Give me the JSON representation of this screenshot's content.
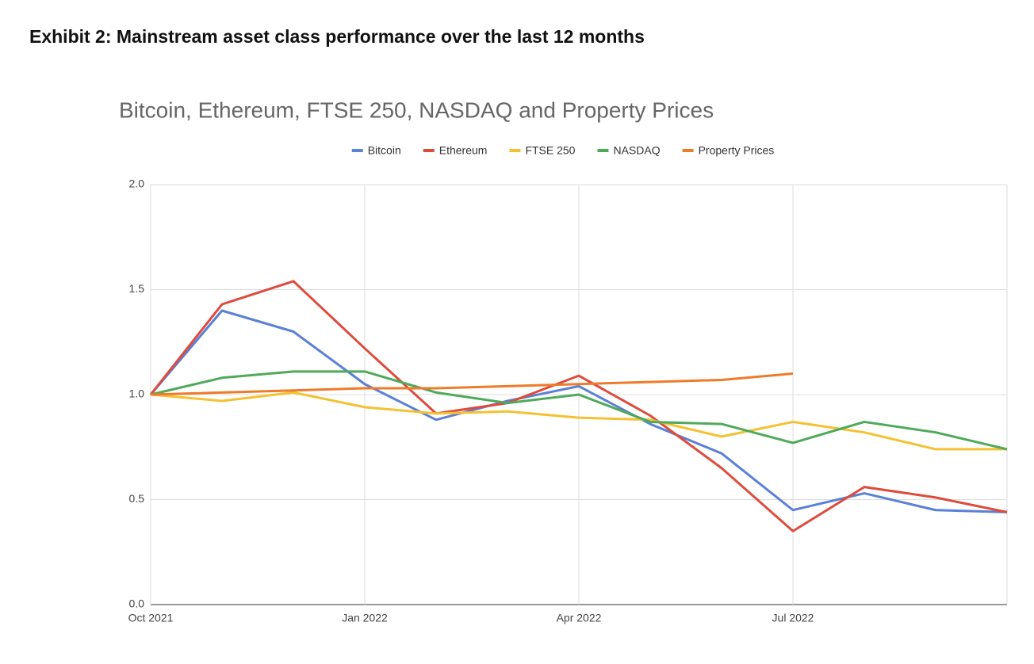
{
  "heading": "Exhibit 2: Mainstream asset class performance over the last 12 months",
  "chart_data": {
    "type": "line",
    "title": "Bitcoin, Ethereum, FTSE 250, NASDAQ and Property Prices",
    "categories": [
      "Oct 2021",
      null,
      null,
      "Jan 2022",
      null,
      null,
      "Apr 2022",
      null,
      null,
      "Jul 2022",
      null,
      null,
      null
    ],
    "series": [
      {
        "name": "Bitcoin",
        "color": "#5a80d8",
        "values": [
          1.0,
          1.4,
          1.3,
          1.05,
          0.88,
          0.97,
          1.04,
          0.86,
          0.72,
          0.45,
          0.53,
          0.45,
          0.44
        ]
      },
      {
        "name": "Ethereum",
        "color": "#de4b3c",
        "values": [
          1.0,
          1.43,
          1.54,
          1.22,
          0.91,
          0.96,
          1.09,
          0.9,
          0.65,
          0.35,
          0.56,
          0.51,
          0.44
        ]
      },
      {
        "name": "FTSE 250",
        "color": "#f4c132",
        "values": [
          1.0,
          0.97,
          1.01,
          0.94,
          0.91,
          0.92,
          0.89,
          0.88,
          0.8,
          0.87,
          0.82,
          0.74,
          0.74
        ]
      },
      {
        "name": "NASDAQ",
        "color": "#4eaa5a",
        "values": [
          1.0,
          1.08,
          1.11,
          1.11,
          1.01,
          0.96,
          1.0,
          0.87,
          0.86,
          0.77,
          0.87,
          0.82,
          0.74
        ]
      },
      {
        "name": "Property Prices",
        "color": "#ee7b2a",
        "values": [
          1.0,
          1.01,
          1.02,
          1.03,
          1.03,
          1.04,
          1.05,
          1.06,
          1.07,
          1.1,
          null,
          null,
          null
        ]
      }
    ],
    "ylim": [
      0,
      2
    ],
    "yticks": [
      {
        "value": 0,
        "label": "0.0"
      },
      0.5,
      {
        "value": 1,
        "label": "1.0"
      },
      1.5,
      {
        "value": 2,
        "label": "2.0"
      }
    ],
    "grid": true,
    "legend": "top"
  }
}
